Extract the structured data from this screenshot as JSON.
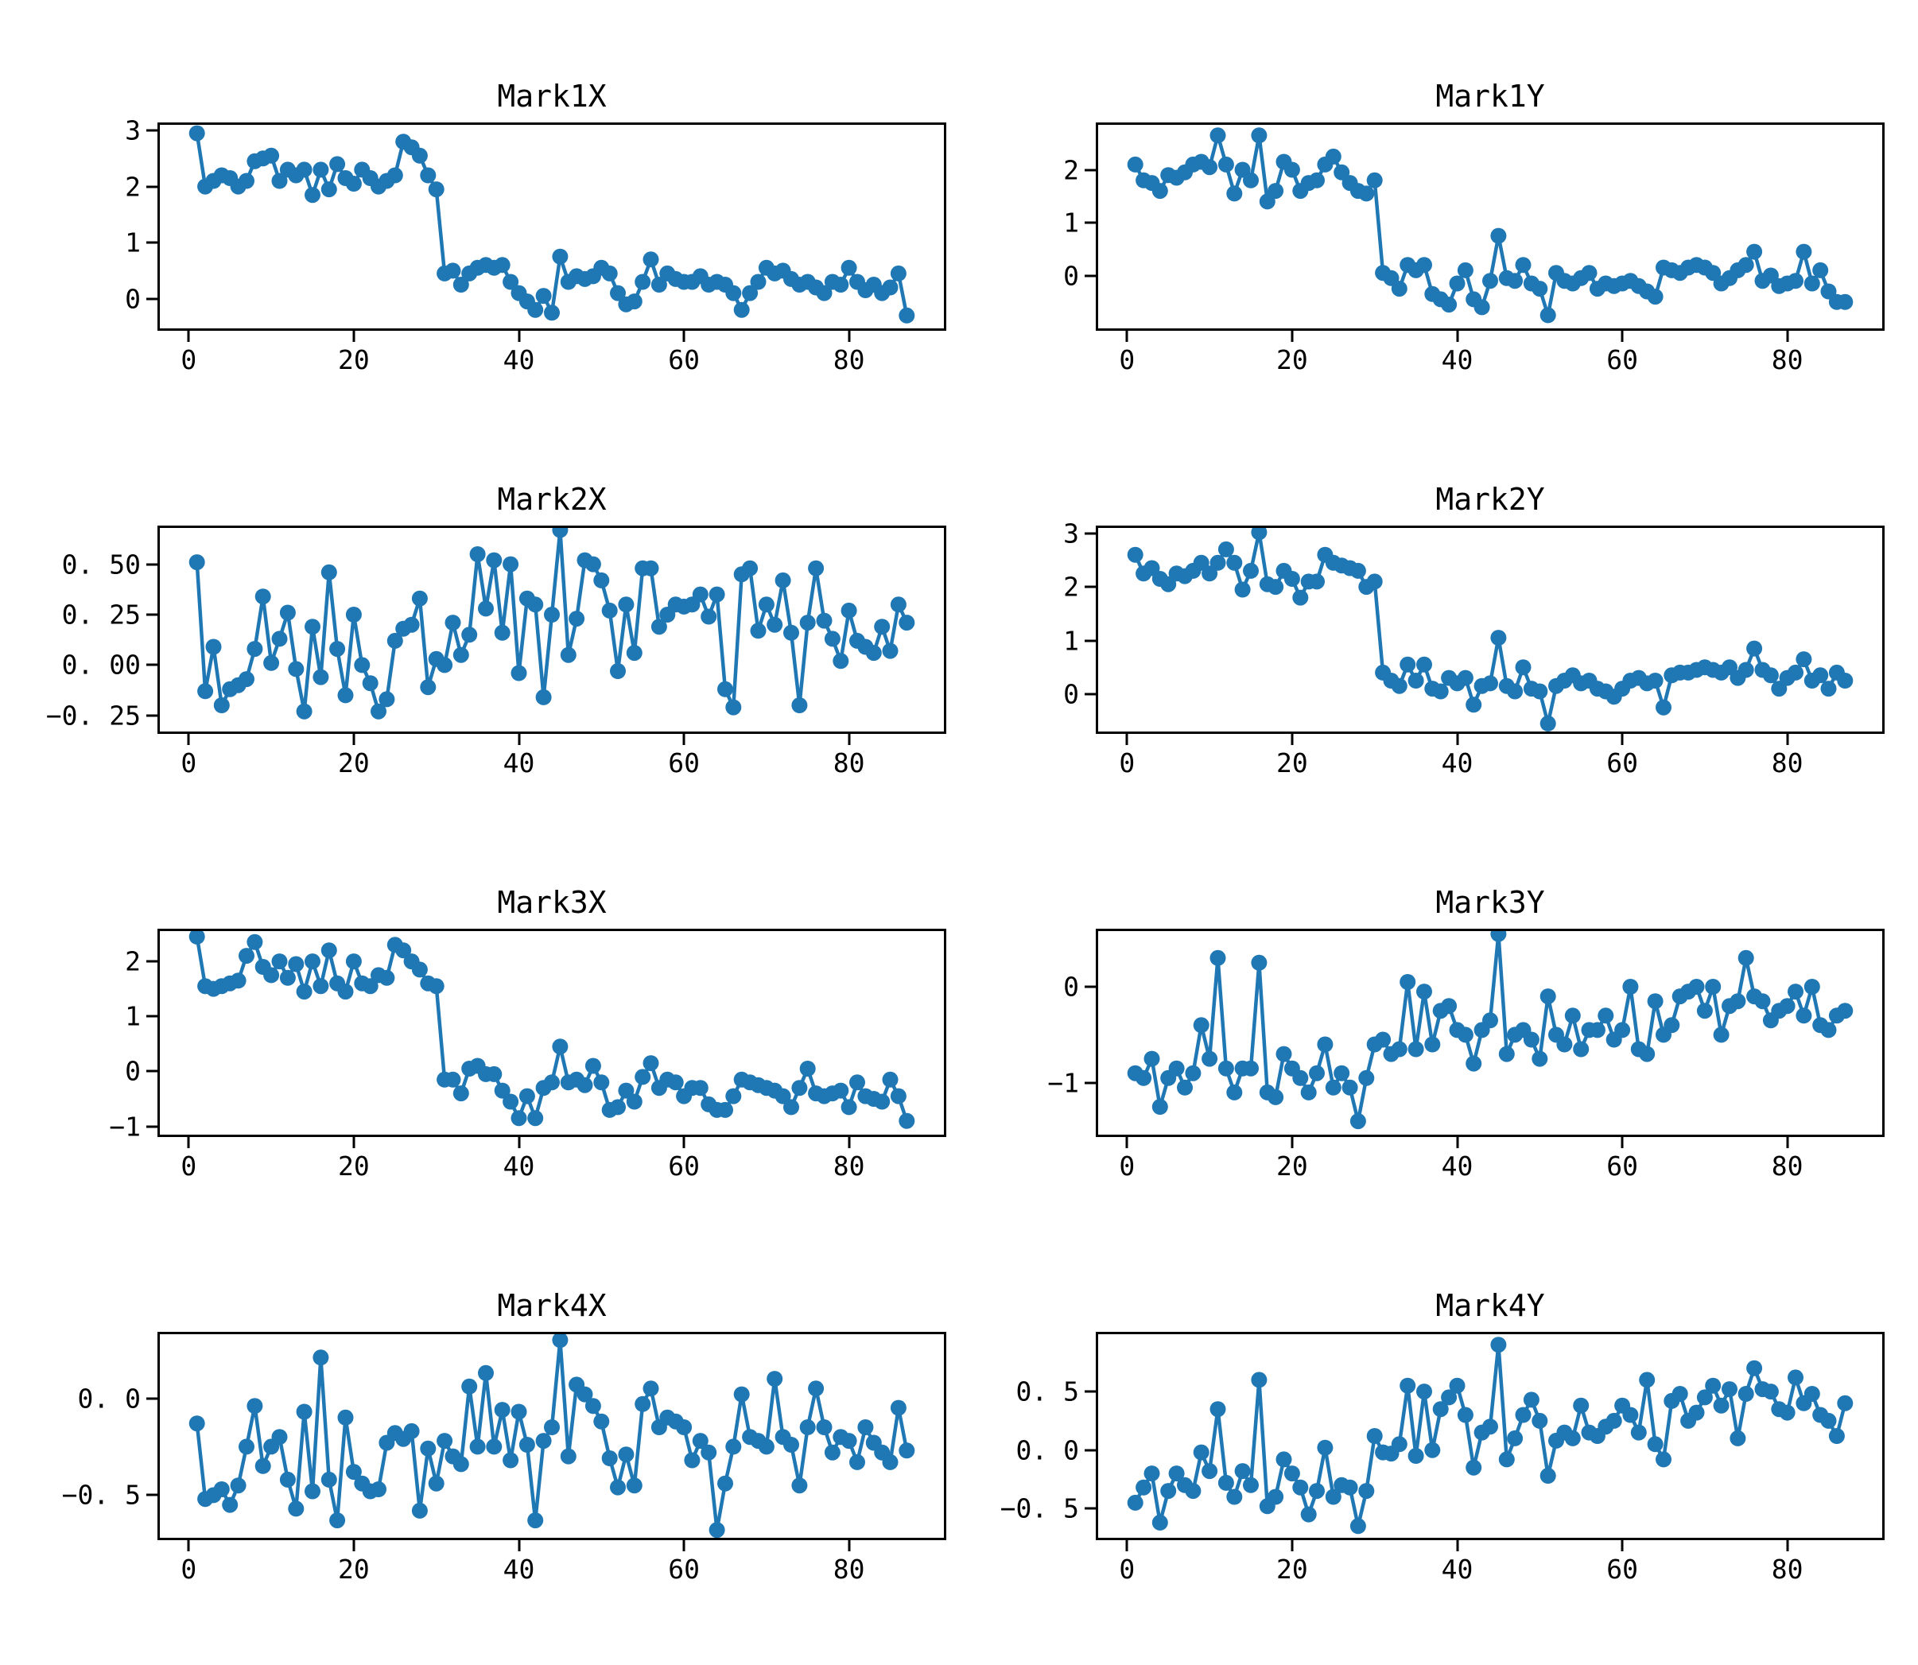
{
  "colors": {
    "series": "#1f77b4",
    "axis": "#000000",
    "background": "#ffffff"
  },
  "chart_data": [
    {
      "type": "line",
      "title": "Mark1X",
      "x_start": 1,
      "xlim": [
        -3.5,
        91.5
      ],
      "ylim": [
        -0.53,
        3.1
      ],
      "xticks": [
        0,
        20,
        40,
        60,
        80
      ],
      "xtick_labels": [
        "0",
        "20",
        "40",
        "60",
        "80"
      ],
      "yticks": [
        0,
        1,
        2,
        3
      ],
      "ytick_labels": [
        "0",
        "1",
        "2",
        "3"
      ],
      "values": [
        2.95,
        2.0,
        2.1,
        2.2,
        2.15,
        2.0,
        2.1,
        2.45,
        2.5,
        2.55,
        2.1,
        2.3,
        2.2,
        2.3,
        1.85,
        2.3,
        1.95,
        2.4,
        2.15,
        2.05,
        2.3,
        2.15,
        2.0,
        2.1,
        2.2,
        2.8,
        2.7,
        2.55,
        2.2,
        1.95,
        0.45,
        0.5,
        0.25,
        0.45,
        0.55,
        0.6,
        0.55,
        0.6,
        0.3,
        0.1,
        -0.05,
        -0.2,
        0.05,
        -0.25,
        0.75,
        0.3,
        0.4,
        0.35,
        0.4,
        0.55,
        0.45,
        0.1,
        -0.1,
        -0.05,
        0.3,
        0.7,
        0.25,
        0.45,
        0.35,
        0.3,
        0.3,
        0.4,
        0.25,
        0.3,
        0.25,
        0.1,
        -0.2,
        0.1,
        0.3,
        0.55,
        0.45,
        0.5,
        0.35,
        0.25,
        0.3,
        0.2,
        0.1,
        0.3,
        0.25,
        0.55,
        0.3,
        0.15,
        0.25,
        0.1,
        0.2,
        0.45,
        -0.3
      ]
    },
    {
      "type": "line",
      "title": "Mark1Y",
      "x_start": 1,
      "xlim": [
        -3.5,
        91.5
      ],
      "ylim": [
        -1.0,
        2.85
      ],
      "xticks": [
        0,
        20,
        40,
        60,
        80
      ],
      "xtick_labels": [
        "0",
        "20",
        "40",
        "60",
        "80"
      ],
      "yticks": [
        0,
        1,
        2
      ],
      "ytick_labels": [
        "0",
        "1",
        "2"
      ],
      "values": [
        2.1,
        1.8,
        1.75,
        1.6,
        1.9,
        1.85,
        1.95,
        2.1,
        2.15,
        2.05,
        2.65,
        2.1,
        1.55,
        2.0,
        1.8,
        2.65,
        1.4,
        1.6,
        2.15,
        2.0,
        1.6,
        1.75,
        1.8,
        2.1,
        2.25,
        1.95,
        1.75,
        1.6,
        1.55,
        1.8,
        0.05,
        -0.05,
        -0.25,
        0.2,
        0.1,
        0.2,
        -0.35,
        -0.45,
        -0.55,
        -0.15,
        0.1,
        -0.45,
        -0.6,
        -0.1,
        0.75,
        -0.05,
        -0.1,
        0.2,
        -0.15,
        -0.25,
        -0.75,
        0.05,
        -0.1,
        -0.15,
        -0.05,
        0.05,
        -0.25,
        -0.15,
        -0.2,
        -0.15,
        -0.1,
        -0.2,
        -0.3,
        -0.4,
        0.15,
        0.1,
        0.05,
        0.15,
        0.2,
        0.15,
        0.05,
        -0.15,
        -0.05,
        0.1,
        0.2,
        0.45,
        -0.1,
        0.0,
        -0.2,
        -0.15,
        -0.1,
        0.45,
        -0.15,
        0.1,
        -0.3,
        -0.5,
        -0.5
      ]
    },
    {
      "type": "line",
      "title": "Mark2X",
      "x_start": 1,
      "xlim": [
        -3.5,
        91.5
      ],
      "ylim": [
        -0.33,
        0.68
      ],
      "xticks": [
        0,
        20,
        40,
        60,
        80
      ],
      "xtick_labels": [
        "0",
        "20",
        "40",
        "60",
        "80"
      ],
      "yticks": [
        -0.25,
        0.0,
        0.25,
        0.5
      ],
      "ytick_labels": [
        "−0. 25",
        "0. 00",
        "0. 25",
        "0. 50"
      ],
      "values": [
        0.51,
        -0.13,
        0.09,
        -0.2,
        -0.12,
        -0.1,
        -0.07,
        0.08,
        0.34,
        0.01,
        0.13,
        0.26,
        -0.02,
        -0.23,
        0.19,
        -0.06,
        0.46,
        0.08,
        -0.15,
        0.25,
        0.0,
        -0.09,
        -0.23,
        -0.17,
        0.12,
        0.18,
        0.2,
        0.33,
        -0.11,
        0.03,
        0.0,
        0.21,
        0.05,
        0.15,
        0.55,
        0.28,
        0.52,
        0.16,
        0.5,
        -0.04,
        0.33,
        0.3,
        -0.16,
        0.25,
        0.67,
        0.05,
        0.23,
        0.52,
        0.5,
        0.42,
        0.27,
        -0.03,
        0.3,
        0.06,
        0.48,
        0.48,
        0.19,
        0.25,
        0.3,
        0.29,
        0.3,
        0.35,
        0.24,
        0.35,
        -0.12,
        -0.21,
        0.45,
        0.48,
        0.17,
        0.3,
        0.2,
        0.42,
        0.16,
        -0.2,
        0.21,
        0.48,
        0.22,
        0.13,
        0.02,
        0.27,
        0.12,
        0.09,
        0.06,
        0.19,
        0.07,
        0.3,
        0.21
      ]
    },
    {
      "type": "line",
      "title": "Mark2Y",
      "x_start": 1,
      "xlim": [
        -3.5,
        91.5
      ],
      "ylim": [
        -0.7,
        3.1
      ],
      "xticks": [
        0,
        20,
        40,
        60,
        80
      ],
      "xtick_labels": [
        "0",
        "20",
        "40",
        "60",
        "80"
      ],
      "yticks": [
        0,
        1,
        2,
        3
      ],
      "ytick_labels": [
        "0",
        "1",
        "2",
        "3"
      ],
      "values": [
        2.6,
        2.25,
        2.35,
        2.15,
        2.05,
        2.25,
        2.2,
        2.3,
        2.45,
        2.25,
        2.45,
        2.7,
        2.45,
        1.95,
        2.3,
        3.02,
        2.05,
        2.0,
        2.3,
        2.15,
        1.8,
        2.1,
        2.1,
        2.6,
        2.45,
        2.4,
        2.35,
        2.3,
        2.0,
        2.1,
        0.4,
        0.25,
        0.15,
        0.55,
        0.25,
        0.55,
        0.1,
        0.05,
        0.3,
        0.2,
        0.3,
        -0.2,
        0.15,
        0.2,
        1.05,
        0.15,
        0.05,
        0.5,
        0.1,
        0.05,
        -0.55,
        0.15,
        0.25,
        0.35,
        0.2,
        0.25,
        0.1,
        0.05,
        -0.05,
        0.1,
        0.25,
        0.3,
        0.2,
        0.25,
        -0.25,
        0.35,
        0.4,
        0.4,
        0.45,
        0.5,
        0.45,
        0.4,
        0.5,
        0.3,
        0.45,
        0.85,
        0.45,
        0.35,
        0.1,
        0.3,
        0.4,
        0.65,
        0.25,
        0.35,
        0.1,
        0.4,
        0.25
      ]
    },
    {
      "type": "line",
      "title": "Mark3X",
      "x_start": 1,
      "xlim": [
        -3.5,
        91.5
      ],
      "ylim": [
        -1.15,
        2.55
      ],
      "xticks": [
        0,
        20,
        40,
        60,
        80
      ],
      "xtick_labels": [
        "0",
        "20",
        "40",
        "60",
        "80"
      ],
      "yticks": [
        -1,
        0,
        1,
        2
      ],
      "ytick_labels": [
        "−1",
        "0",
        "1",
        "2"
      ],
      "values": [
        2.45,
        1.55,
        1.5,
        1.55,
        1.6,
        1.65,
        2.1,
        2.35,
        1.9,
        1.75,
        2.0,
        1.7,
        1.95,
        1.45,
        2.0,
        1.55,
        2.2,
        1.6,
        1.45,
        2.0,
        1.6,
        1.55,
        1.75,
        1.7,
        2.3,
        2.2,
        2.0,
        1.85,
        1.6,
        1.55,
        -0.15,
        -0.15,
        -0.4,
        0.05,
        0.1,
        -0.05,
        -0.05,
        -0.35,
        -0.55,
        -0.85,
        -0.45,
        -0.85,
        -0.3,
        -0.2,
        0.45,
        -0.2,
        -0.15,
        -0.25,
        0.1,
        -0.2,
        -0.7,
        -0.65,
        -0.35,
        -0.55,
        -0.1,
        0.15,
        -0.3,
        -0.15,
        -0.2,
        -0.45,
        -0.3,
        -0.3,
        -0.6,
        -0.7,
        -0.7,
        -0.45,
        -0.15,
        -0.2,
        -0.25,
        -0.3,
        -0.35,
        -0.45,
        -0.65,
        -0.3,
        0.05,
        -0.4,
        -0.45,
        -0.4,
        -0.35,
        -0.65,
        -0.2,
        -0.45,
        -0.5,
        -0.55,
        -0.15,
        -0.45,
        -0.9
      ]
    },
    {
      "type": "line",
      "title": "Mark3Y",
      "x_start": 1,
      "xlim": [
        -3.5,
        91.5
      ],
      "ylim": [
        -1.54,
        0.58
      ],
      "xticks": [
        0,
        20,
        40,
        60,
        80
      ],
      "xtick_labels": [
        "0",
        "20",
        "40",
        "60",
        "80"
      ],
      "yticks": [
        -1,
        0
      ],
      "ytick_labels": [
        "−1",
        "0"
      ],
      "values": [
        -0.9,
        -0.95,
        -0.75,
        -1.25,
        -0.95,
        -0.85,
        -1.05,
        -0.9,
        -0.4,
        -0.75,
        0.3,
        -0.85,
        -1.1,
        -0.85,
        -0.85,
        0.25,
        -1.1,
        -1.15,
        -0.7,
        -0.85,
        -0.95,
        -1.1,
        -0.9,
        -0.6,
        -1.05,
        -0.9,
        -1.05,
        -1.4,
        -0.95,
        -0.6,
        -0.55,
        -0.7,
        -0.65,
        0.05,
        -0.65,
        -0.05,
        -0.6,
        -0.25,
        -0.2,
        -0.45,
        -0.5,
        -0.8,
        -0.45,
        -0.35,
        0.55,
        -0.7,
        -0.5,
        -0.45,
        -0.55,
        -0.75,
        -0.1,
        -0.5,
        -0.6,
        -0.3,
        -0.65,
        -0.45,
        -0.45,
        -0.3,
        -0.55,
        -0.45,
        0.0,
        -0.65,
        -0.7,
        -0.15,
        -0.5,
        -0.4,
        -0.1,
        -0.05,
        0.0,
        -0.25,
        0.0,
        -0.5,
        -0.2,
        -0.15,
        0.3,
        -0.1,
        -0.15,
        -0.35,
        -0.25,
        -0.2,
        -0.05,
        -0.3,
        0.0,
        -0.4,
        -0.45,
        -0.3,
        -0.25
      ]
    },
    {
      "type": "line",
      "title": "Mark4X",
      "x_start": 1,
      "xlim": [
        -3.5,
        91.5
      ],
      "ylim": [
        -0.72,
        0.33
      ],
      "xticks": [
        0,
        20,
        40,
        60,
        80
      ],
      "xtick_labels": [
        "0",
        "20",
        "40",
        "60",
        "80"
      ],
      "yticks": [
        -0.5,
        0.0
      ],
      "ytick_labels": [
        "−0. 5",
        "0. 0"
      ],
      "values": [
        -0.13,
        -0.52,
        -0.5,
        -0.47,
        -0.55,
        -0.45,
        -0.25,
        -0.04,
        -0.35,
        -0.25,
        -0.2,
        -0.42,
        -0.57,
        -0.07,
        -0.48,
        0.21,
        -0.42,
        -0.63,
        -0.1,
        -0.38,
        -0.44,
        -0.48,
        -0.47,
        -0.23,
        -0.18,
        -0.21,
        -0.17,
        -0.58,
        -0.26,
        -0.44,
        -0.22,
        -0.3,
        -0.34,
        0.06,
        -0.25,
        0.13,
        -0.25,
        -0.06,
        -0.32,
        -0.07,
        -0.24,
        -0.63,
        -0.22,
        -0.15,
        0.3,
        -0.3,
        0.07,
        0.02,
        -0.04,
        -0.12,
        -0.31,
        -0.46,
        -0.29,
        -0.45,
        -0.03,
        0.05,
        -0.15,
        -0.1,
        -0.12,
        -0.15,
        -0.32,
        -0.22,
        -0.28,
        -0.68,
        -0.44,
        -0.25,
        0.02,
        -0.2,
        -0.22,
        -0.25,
        0.1,
        -0.2,
        -0.24,
        -0.45,
        -0.15,
        0.05,
        -0.15,
        -0.28,
        -0.2,
        -0.22,
        -0.33,
        -0.15,
        -0.23,
        -0.28,
        -0.33,
        -0.05,
        -0.27
      ]
    },
    {
      "type": "line",
      "title": "Mark4Y",
      "x_start": 1,
      "xlim": [
        -3.5,
        91.5
      ],
      "ylim": [
        -0.75,
        0.99
      ],
      "xticks": [
        0,
        20,
        40,
        60,
        80
      ],
      "xtick_labels": [
        "0",
        "20",
        "40",
        "60",
        "80"
      ],
      "yticks": [
        -0.5,
        0.0,
        0.5
      ],
      "ytick_labels": [
        "−0. 5",
        "0. 0",
        "0. 5"
      ],
      "values": [
        -0.45,
        -0.32,
        -0.2,
        -0.62,
        -0.35,
        -0.2,
        -0.3,
        -0.35,
        -0.02,
        -0.18,
        0.35,
        -0.28,
        -0.4,
        -0.18,
        -0.3,
        0.6,
        -0.48,
        -0.4,
        -0.08,
        -0.2,
        -0.32,
        -0.55,
        -0.35,
        0.02,
        -0.4,
        -0.3,
        -0.32,
        -0.65,
        -0.35,
        0.12,
        -0.02,
        -0.03,
        0.05,
        0.55,
        -0.05,
        0.5,
        0.0,
        0.35,
        0.45,
        0.55,
        0.3,
        -0.15,
        0.15,
        0.2,
        0.9,
        -0.08,
        0.1,
        0.3,
        0.43,
        0.25,
        -0.22,
        0.08,
        0.15,
        0.1,
        0.38,
        0.15,
        0.12,
        0.2,
        0.25,
        0.38,
        0.3,
        0.15,
        0.6,
        0.05,
        -0.08,
        0.42,
        0.48,
        0.25,
        0.32,
        0.45,
        0.55,
        0.38,
        0.52,
        0.1,
        0.48,
        0.7,
        0.52,
        0.5,
        0.35,
        0.32,
        0.62,
        0.4,
        0.48,
        0.3,
        0.25,
        0.12,
        0.4
      ]
    }
  ]
}
